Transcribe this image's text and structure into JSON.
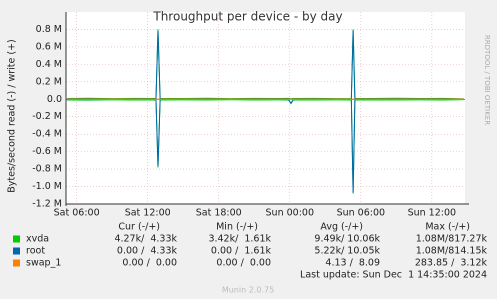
{
  "chart_data": {
    "type": "line",
    "title": "Throughput per device - by day",
    "y_label": "Bytes/second read (-) / write (+)",
    "side_text": "RRDTOOL / TOBI OETIKER",
    "x": [
      5.2,
      7,
      9,
      11,
      12.7,
      12.87,
      13.05,
      15,
      17,
      19,
      21,
      23,
      23.9,
      24.1,
      24.3,
      26,
      28,
      29.2,
      29.35,
      29.5,
      31,
      33,
      35,
      37,
      38.7
    ],
    "xlim": [
      5.1,
      38.8
    ],
    "xticks": [
      {
        "value": 6,
        "label": "Sat 06:00"
      },
      {
        "value": 12,
        "label": "Sat 12:00"
      },
      {
        "value": 18,
        "label": "Sat 18:00"
      },
      {
        "value": 24,
        "label": "Sun 00:00"
      },
      {
        "value": 30,
        "label": "Sun 06:00"
      },
      {
        "value": 36,
        "label": "Sun 12:00"
      }
    ],
    "ylim": [
      -1200000,
      1000000
    ],
    "yticks": [
      {
        "value": 800000,
        "label": "0.8 M"
      },
      {
        "value": 600000,
        "label": "0.6 M"
      },
      {
        "value": 400000,
        "label": "0.4 M"
      },
      {
        "value": 200000,
        "label": "0.2 M"
      },
      {
        "value": 0,
        "label": "0.0"
      },
      {
        "value": -200000,
        "label": "-0.2 M"
      },
      {
        "value": -400000,
        "label": "-0.4 M"
      },
      {
        "value": -600000,
        "label": "-0.6 M"
      },
      {
        "value": -800000,
        "label": "-0.8 M"
      },
      {
        "value": -1000000,
        "label": "-1.0 M"
      },
      {
        "value": -1200000,
        "label": "-1.2 M"
      }
    ],
    "grid": true,
    "series": [
      {
        "name": "xvda",
        "color": "#00cc00",
        "values": [
          9000,
          12000,
          8000,
          10000,
          9000,
          800000,
          10000,
          9000,
          11000,
          8000,
          10000,
          9000,
          10000,
          6000,
          9000,
          10000,
          8000,
          9000,
          800000,
          10000,
          9000,
          11000,
          9000,
          10000,
          4000
        ],
        "read": [
          -8000,
          -10000,
          -6000,
          -9000,
          -8000,
          -780000,
          -9000,
          -7000,
          -9000,
          -6000,
          -8000,
          -7000,
          -9000,
          -50000,
          -8000,
          -9000,
          -7000,
          -8000,
          -1080000,
          -9000,
          -8000,
          -9000,
          -7000,
          -8000,
          -4000
        ]
      },
      {
        "name": "root",
        "color": "#0066b3",
        "values": [
          4000,
          5000,
          3000,
          4000,
          4000,
          790000,
          4000,
          3000,
          5000,
          3000,
          4000,
          4000,
          5000,
          3000,
          4000,
          4000,
          3000,
          4000,
          790000,
          4000,
          4000,
          5000,
          4000,
          4000,
          2000
        ],
        "read": [
          -3000,
          -4000,
          -2000,
          -3000,
          -3000,
          -770000,
          -3000,
          -2000,
          -3000,
          -2000,
          -3000,
          -3000,
          -4000,
          -45000,
          -3000,
          -3000,
          -2000,
          -3000,
          -1070000,
          -3000,
          -3000,
          -3000,
          -2000,
          -3000,
          -2000
        ]
      },
      {
        "name": "swap_1",
        "color": "#ff8000",
        "values": [
          0,
          0,
          0,
          0,
          0,
          0,
          0,
          0,
          0,
          0,
          0,
          0,
          0,
          0,
          0,
          0,
          0,
          0,
          0,
          0,
          0,
          0,
          0,
          0,
          0
        ],
        "read": [
          0,
          0,
          0,
          0,
          0,
          0,
          0,
          0,
          0,
          0,
          0,
          0,
          0,
          0,
          0,
          0,
          0,
          0,
          0,
          0,
          0,
          0,
          0,
          0,
          0
        ]
      }
    ],
    "legend_table": {
      "columns": [
        "Cur (-/+)",
        "Min (-/+)",
        "Avg (-/+)",
        "Max (-/+)"
      ],
      "rows": [
        [
          "4.27k/  4.33k",
          "3.42k/  1.61k",
          "9.49k/ 10.06k",
          "1.08M/817.27k"
        ],
        [
          "0.00 /  4.33k",
          "0.00 /  1.61k",
          "5.22k/ 10.05k",
          "1.08M/814.15k"
        ],
        [
          "0.00 /  0.00",
          "0.00 /  0.00",
          "4.13 /  8.09",
          "283.85 /  3.12k"
        ]
      ]
    },
    "last_update": "Last update: Sun Dec  1 14:35:00 2024",
    "footer": "Munin 2.0.75"
  }
}
